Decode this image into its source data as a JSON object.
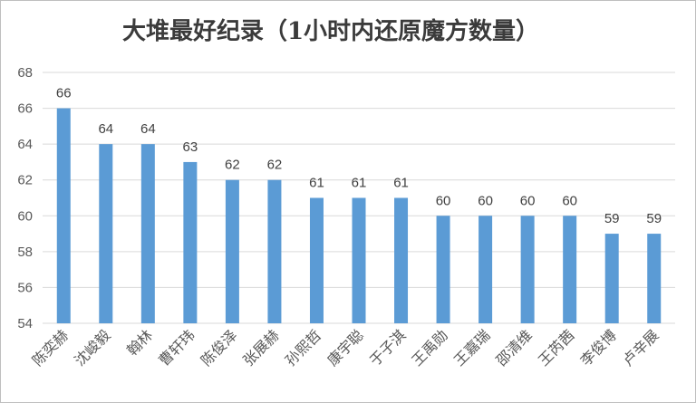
{
  "chart_data": {
    "type": "bar",
    "title": "大堆最好纪录（1小时内还原魔方数量）",
    "categories": [
      "陈奕赫",
      "沈峻毅",
      "翰林",
      "曹轩玮",
      "陈俊泽",
      "张展赫",
      "孙熙哲",
      "康宇聪",
      "于子淇",
      "王禹勋",
      "王嘉瑞",
      "邵清维",
      "王芮茜",
      "李俊博",
      "卢辛展"
    ],
    "values": [
      66,
      64,
      64,
      63,
      62,
      62,
      61,
      61,
      61,
      60,
      60,
      60,
      60,
      59,
      59
    ],
    "ylim": [
      54,
      68
    ],
    "yticks": [
      54,
      56,
      58,
      60,
      62,
      64,
      66,
      68
    ],
    "grid": true,
    "data_labels": true,
    "xlabel": "",
    "ylabel": "",
    "colors": {
      "bar": "#5b9bd5",
      "grid": "#d9d9d9"
    }
  }
}
